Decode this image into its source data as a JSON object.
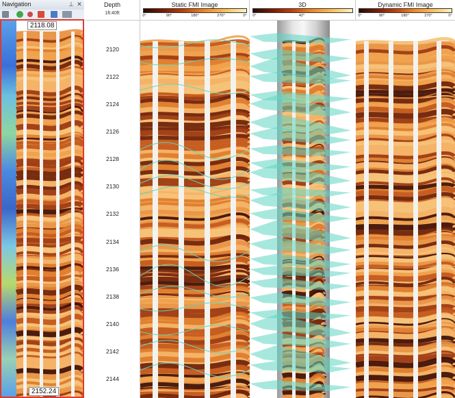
{
  "navigation": {
    "title": "Navigation",
    "pin_icon": "pin-icon",
    "close_icon": "close-icon",
    "tools": [
      "add-icon",
      "add-small-icon",
      "remove-icon",
      "delete-icon",
      "export-icon",
      "columns-icon"
    ],
    "top_depth": "2118.08",
    "bottom_depth": "2152.24"
  },
  "header": {
    "depth_title": "Depth",
    "depth_scale": "1ft:40ft",
    "static_title": "Static FMI Image",
    "static_ticks": [
      "0°",
      "90°",
      "180°",
      "270°",
      "0°"
    ],
    "threed_title": "3D",
    "threed_ticks": [
      "0°",
      "42°"
    ],
    "dynamic_title": "Dynamic FMI Image",
    "dynamic_ticks": [
      "0°",
      "90°",
      "180°",
      "270°",
      "0°"
    ]
  },
  "depth_labels": [
    "2120",
    "2122",
    "2124",
    "2126",
    "2128",
    "2130",
    "2132",
    "2134",
    "2136",
    "2138",
    "2140",
    "2142",
    "2144"
  ],
  "colors": {
    "image_dark": "#3a0c04",
    "image_mid": "#c8561a",
    "image_light": "#f4b267",
    "sinusoid": "#5fd6c2",
    "nav_border": "#e03a2c"
  }
}
